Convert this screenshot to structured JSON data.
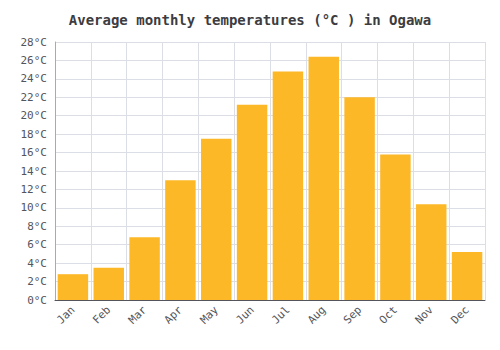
{
  "chart_data": {
    "type": "bar",
    "title": "Average monthly temperatures (°C ) in Ogawa",
    "categories": [
      "Jan",
      "Feb",
      "Mar",
      "Apr",
      "May",
      "Jun",
      "Jul",
      "Aug",
      "Sep",
      "Oct",
      "Nov",
      "Dec"
    ],
    "values": [
      2.8,
      3.5,
      6.8,
      13.0,
      17.5,
      21.2,
      24.8,
      26.4,
      22.0,
      15.8,
      10.4,
      5.2
    ],
    "color": "#FDB827",
    "ylim": [
      0,
      28
    ],
    "yticks": [
      {
        "value": 0,
        "label": "0°C"
      },
      {
        "value": 2,
        "label": "2°C"
      },
      {
        "value": 4,
        "label": "4°C"
      },
      {
        "value": 6,
        "label": "6°C"
      },
      {
        "value": 8,
        "label": "8°C"
      },
      {
        "value": 10,
        "label": "10°C"
      },
      {
        "value": 12,
        "label": "12°C"
      },
      {
        "value": 14,
        "label": "14°C"
      },
      {
        "value": 16,
        "label": "16°C"
      },
      {
        "value": 18,
        "label": "18°C"
      },
      {
        "value": 20,
        "label": "20°C"
      },
      {
        "value": 22,
        "label": "22°C"
      },
      {
        "value": 24,
        "label": "24°C"
      },
      {
        "value": 26,
        "label": "26°C"
      },
      {
        "value": 28,
        "label": "28°C"
      }
    ],
    "grid": true
  }
}
